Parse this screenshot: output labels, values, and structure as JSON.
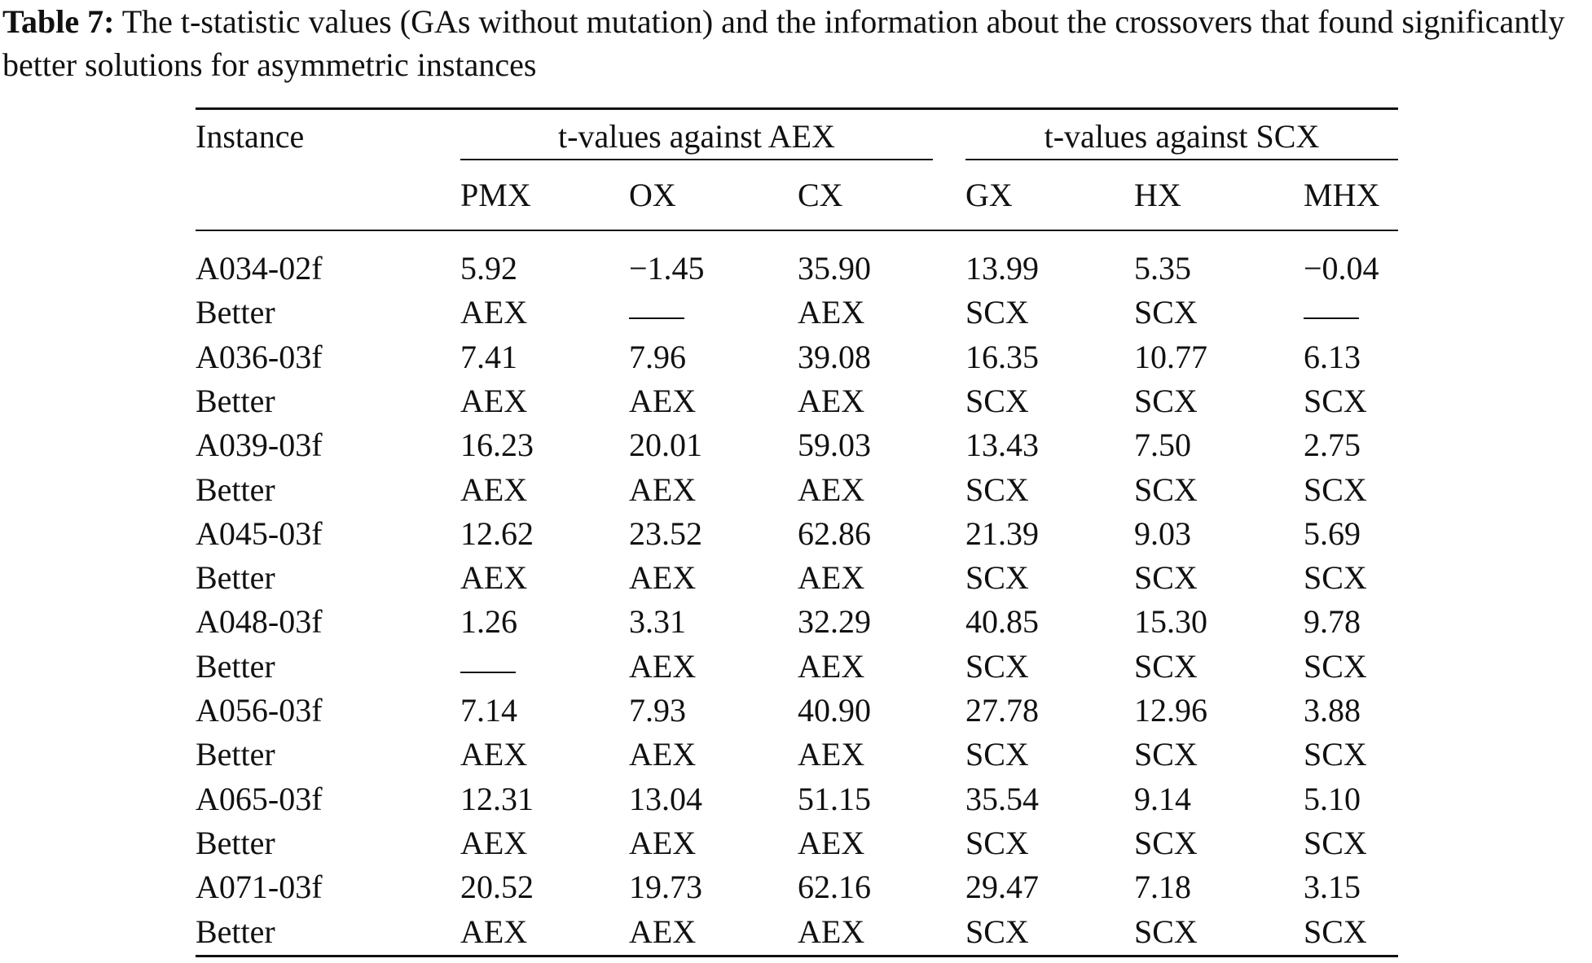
{
  "caption": {
    "label": "Table 7:",
    "text": "The t-statistic values (GAs without mutation) and the information about the crossovers that found significantly better solutions for asymmetric instances"
  },
  "table": {
    "instance_header": "Instance",
    "group_headers": [
      "t-values against AEX",
      "t-values against SCX"
    ],
    "columns": [
      "PMX",
      "OX",
      "CX",
      "GX",
      "HX",
      "MHX"
    ],
    "rows": [
      {
        "instance": "A034-02f",
        "values": [
          "5.92",
          "−1.45",
          "35.90",
          "13.99",
          "5.35",
          "−0.04"
        ]
      },
      {
        "instance": "Better",
        "values": [
          "AEX",
          "—",
          "AEX",
          "SCX",
          "SCX",
          "—"
        ]
      },
      {
        "instance": "A036-03f",
        "values": [
          "7.41",
          "7.96",
          "39.08",
          "16.35",
          "10.77",
          "6.13"
        ]
      },
      {
        "instance": "Better",
        "values": [
          "AEX",
          "AEX",
          "AEX",
          "SCX",
          "SCX",
          "SCX"
        ]
      },
      {
        "instance": "A039-03f",
        "values": [
          "16.23",
          "20.01",
          "59.03",
          "13.43",
          "7.50",
          "2.75"
        ]
      },
      {
        "instance": "Better",
        "values": [
          "AEX",
          "AEX",
          "AEX",
          "SCX",
          "SCX",
          "SCX"
        ]
      },
      {
        "instance": "A045-03f",
        "values": [
          "12.62",
          "23.52",
          "62.86",
          "21.39",
          "9.03",
          "5.69"
        ]
      },
      {
        "instance": "Better",
        "values": [
          "AEX",
          "AEX",
          "AEX",
          "SCX",
          "SCX",
          "SCX"
        ]
      },
      {
        "instance": "A048-03f",
        "values": [
          "1.26",
          "3.31",
          "32.29",
          "40.85",
          "15.30",
          "9.78"
        ]
      },
      {
        "instance": "Better",
        "values": [
          "—",
          "AEX",
          "AEX",
          "SCX",
          "SCX",
          "SCX"
        ]
      },
      {
        "instance": "A056-03f",
        "values": [
          "7.14",
          "7.93",
          "40.90",
          "27.78",
          "12.96",
          "3.88"
        ]
      },
      {
        "instance": "Better",
        "values": [
          "AEX",
          "AEX",
          "AEX",
          "SCX",
          "SCX",
          "SCX"
        ]
      },
      {
        "instance": "A065-03f",
        "values": [
          "12.31",
          "13.04",
          "51.15",
          "35.54",
          "9.14",
          "5.10"
        ]
      },
      {
        "instance": "Better",
        "values": [
          "AEX",
          "AEX",
          "AEX",
          "SCX",
          "SCX",
          "SCX"
        ]
      },
      {
        "instance": "A071-03f",
        "values": [
          "20.52",
          "19.73",
          "62.16",
          "29.47",
          "7.18",
          "3.15"
        ]
      },
      {
        "instance": "Better",
        "values": [
          "AEX",
          "AEX",
          "AEX",
          "SCX",
          "SCX",
          "SCX"
        ]
      }
    ]
  }
}
